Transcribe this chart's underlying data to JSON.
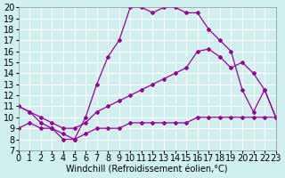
{
  "xlabel": "Windchill (Refroidissement éolien,°C)",
  "ylabel": "",
  "background_color": "#d0f0f0",
  "grid_color": "#ffffff",
  "line_color": "#990099",
  "xlim": [
    0,
    23
  ],
  "ylim": [
    7,
    20
  ],
  "xticks": [
    0,
    1,
    2,
    3,
    4,
    5,
    6,
    7,
    8,
    9,
    10,
    11,
    12,
    13,
    14,
    15,
    16,
    17,
    18,
    19,
    20,
    21,
    22,
    23
  ],
  "yticks": [
    7,
    8,
    9,
    10,
    11,
    12,
    13,
    14,
    15,
    16,
    17,
    18,
    19,
    20
  ],
  "line1_x": [
    0,
    1,
    2,
    3,
    4,
    5,
    6,
    7,
    8,
    9,
    10,
    11,
    12,
    13,
    14,
    15,
    16,
    17,
    18,
    19,
    20,
    21,
    22,
    23
  ],
  "line1_y": [
    11,
    10.5,
    9.5,
    9.0,
    8.5,
    8.0,
    10.0,
    13.0,
    15.5,
    17.0,
    20.0,
    20.0,
    19.5,
    20.0,
    20.0,
    19.5,
    19.5,
    18.0,
    17.0,
    16.0,
    12.5,
    10.5,
    12.5,
    10.0
  ],
  "line2_x": [
    0,
    1,
    2,
    3,
    4,
    5,
    6,
    7,
    8,
    9,
    10,
    11,
    12,
    13,
    14,
    15,
    16,
    17,
    18,
    19,
    20,
    21,
    22,
    23
  ],
  "line2_y": [
    11,
    10.5,
    10.0,
    9.5,
    9.0,
    9.0,
    9.5,
    10.5,
    11.0,
    11.5,
    12.0,
    12.5,
    13.0,
    13.5,
    14.0,
    14.5,
    16.0,
    16.2,
    15.5,
    14.5,
    15.0,
    14.0,
    12.5,
    10.0
  ],
  "line3_x": [
    0,
    1,
    2,
    3,
    4,
    5,
    6,
    7,
    8,
    9,
    10,
    11,
    12,
    13,
    14,
    15,
    16,
    17,
    18,
    19,
    20,
    21,
    22,
    23
  ],
  "line3_y": [
    9.0,
    9.5,
    9.0,
    9.0,
    8.0,
    8.0,
    8.5,
    9.0,
    9.0,
    9.0,
    9.5,
    9.5,
    9.5,
    9.5,
    9.5,
    9.5,
    10.0,
    10.0,
    10.0,
    10.0,
    10.0,
    10.0,
    10.0,
    10.0
  ],
  "tick_fontsize": 7,
  "xlabel_fontsize": 7,
  "marker": "D",
  "marker_size": 2.0
}
